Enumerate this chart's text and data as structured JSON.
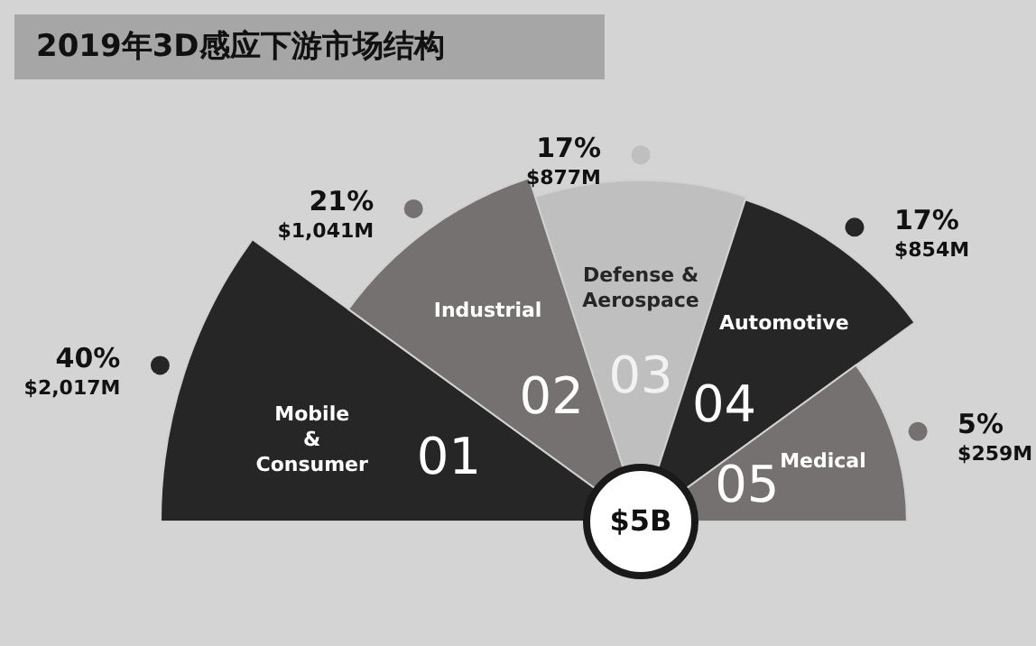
{
  "chart_data": {
    "type": "other",
    "title": "2019年3D感应下游市场结构",
    "categories": [
      "Mobile\n&\nConsumer",
      "Industrial",
      "Defense &\nAerospace",
      "Automotive",
      "Medical"
    ],
    "values": [
      2017,
      1041,
      877,
      854,
      259
    ],
    "value_labels": [
      "$2,017M",
      "$1,041M",
      "$877M",
      "$854M",
      "$259M"
    ],
    "colors": [
      "#262626",
      "#767171",
      "#bfbfbf",
      "#262626",
      "#767171"
    ],
    "annotations": [
      "01",
      "02",
      "03",
      "04",
      "05",
      "$5B",
      "40%",
      "21%",
      "17%",
      "17%",
      "5%"
    ]
  }
}
